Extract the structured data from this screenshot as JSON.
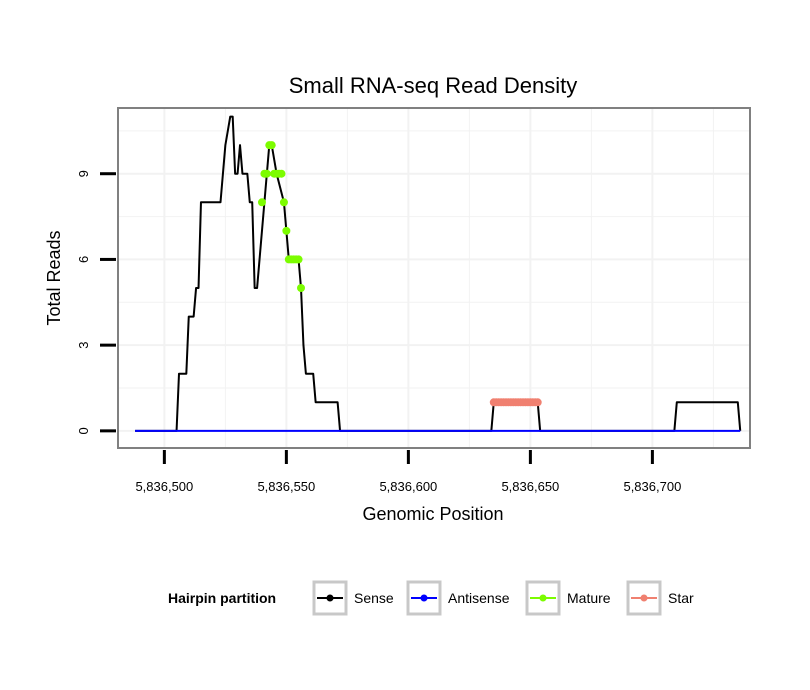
{
  "chart_data": {
    "type": "line",
    "title": "Small RNA-seq Read Density",
    "xlabel": "Genomic Position",
    "ylabel": "Total Reads",
    "xlim": [
      5836481,
      5836740
    ],
    "ylim": [
      -0.6,
      11.3
    ],
    "x_ticks": [
      {
        "value": 5836500,
        "label": "5,836,500"
      },
      {
        "value": 5836550,
        "label": "5,836,550"
      },
      {
        "value": 5836600,
        "label": "5,836,600"
      },
      {
        "value": 5836650,
        "label": "5,836,650"
      },
      {
        "value": 5836700,
        "label": "5,836,700"
      }
    ],
    "y_ticks": [
      {
        "value": 0,
        "label": "0"
      },
      {
        "value": 3,
        "label": "3"
      },
      {
        "value": 6,
        "label": "6"
      },
      {
        "value": 9,
        "label": "9"
      }
    ],
    "grid": true,
    "legend": {
      "title": "Hairpin partition",
      "position": "bottom",
      "entries": [
        "Sense",
        "Antisense",
        "Mature",
        "Star"
      ]
    },
    "series": [
      {
        "name": "Sense",
        "color": "#000000",
        "points": [
          [
            5836488,
            0
          ],
          [
            5836505,
            0
          ],
          [
            5836506,
            2
          ],
          [
            5836509,
            2
          ],
          [
            5836510,
            4
          ],
          [
            5836512,
            4
          ],
          [
            5836513,
            5
          ],
          [
            5836514,
            5
          ],
          [
            5836515,
            8
          ],
          [
            5836523,
            8
          ],
          [
            5836525,
            10
          ],
          [
            5836527,
            11
          ],
          [
            5836528,
            11
          ],
          [
            5836529,
            9
          ],
          [
            5836530,
            9
          ],
          [
            5836531,
            10
          ],
          [
            5836532,
            9
          ],
          [
            5836534,
            9
          ],
          [
            5836535,
            8
          ],
          [
            5836536,
            8
          ],
          [
            5836537,
            5
          ],
          [
            5836538,
            5
          ],
          [
            5836541,
            8
          ],
          [
            5836543,
            10
          ],
          [
            5836544,
            10
          ],
          [
            5836546,
            9
          ],
          [
            5836549,
            8
          ],
          [
            5836550,
            7
          ],
          [
            5836551,
            6
          ],
          [
            5836555,
            6
          ],
          [
            5836556,
            5
          ],
          [
            5836557,
            3
          ],
          [
            5836558,
            2
          ],
          [
            5836561,
            2
          ],
          [
            5836562,
            1
          ],
          [
            5836571,
            1
          ],
          [
            5836572,
            0
          ],
          [
            5836634,
            0
          ],
          [
            5836635,
            1
          ],
          [
            5836653,
            1
          ],
          [
            5836654,
            0
          ],
          [
            5836709,
            0
          ],
          [
            5836710,
            1
          ],
          [
            5836735,
            1
          ],
          [
            5836736,
            0
          ]
        ]
      },
      {
        "name": "Antisense",
        "color": "#0000ff",
        "points": [
          [
            5836488,
            0
          ],
          [
            5836736,
            0
          ]
        ]
      },
      {
        "name": "Mature",
        "color": "#7cfc00",
        "points": [
          [
            5836540,
            8
          ],
          [
            5836541,
            9
          ],
          [
            5836542,
            9
          ],
          [
            5836543,
            10
          ],
          [
            5836544,
            10
          ],
          [
            5836545,
            9
          ],
          [
            5836546,
            9
          ],
          [
            5836547,
            9
          ],
          [
            5836548,
            9
          ],
          [
            5836549,
            8
          ],
          [
            5836550,
            7
          ],
          [
            5836551,
            6
          ],
          [
            5836552,
            6
          ],
          [
            5836553,
            6
          ],
          [
            5836554,
            6
          ],
          [
            5836555,
            6
          ],
          [
            5836556,
            5
          ]
        ]
      },
      {
        "name": "Star",
        "color": "#f08070",
        "points": [
          [
            5836635,
            1
          ],
          [
            5836636,
            1
          ],
          [
            5836637,
            1
          ],
          [
            5836638,
            1
          ],
          [
            5836639,
            1
          ],
          [
            5836640,
            1
          ],
          [
            5836641,
            1
          ],
          [
            5836642,
            1
          ],
          [
            5836643,
            1
          ],
          [
            5836644,
            1
          ],
          [
            5836645,
            1
          ],
          [
            5836646,
            1
          ],
          [
            5836647,
            1
          ],
          [
            5836648,
            1
          ],
          [
            5836649,
            1
          ],
          [
            5836650,
            1
          ],
          [
            5836651,
            1
          ],
          [
            5836652,
            1
          ],
          [
            5836653,
            1
          ]
        ]
      }
    ]
  }
}
